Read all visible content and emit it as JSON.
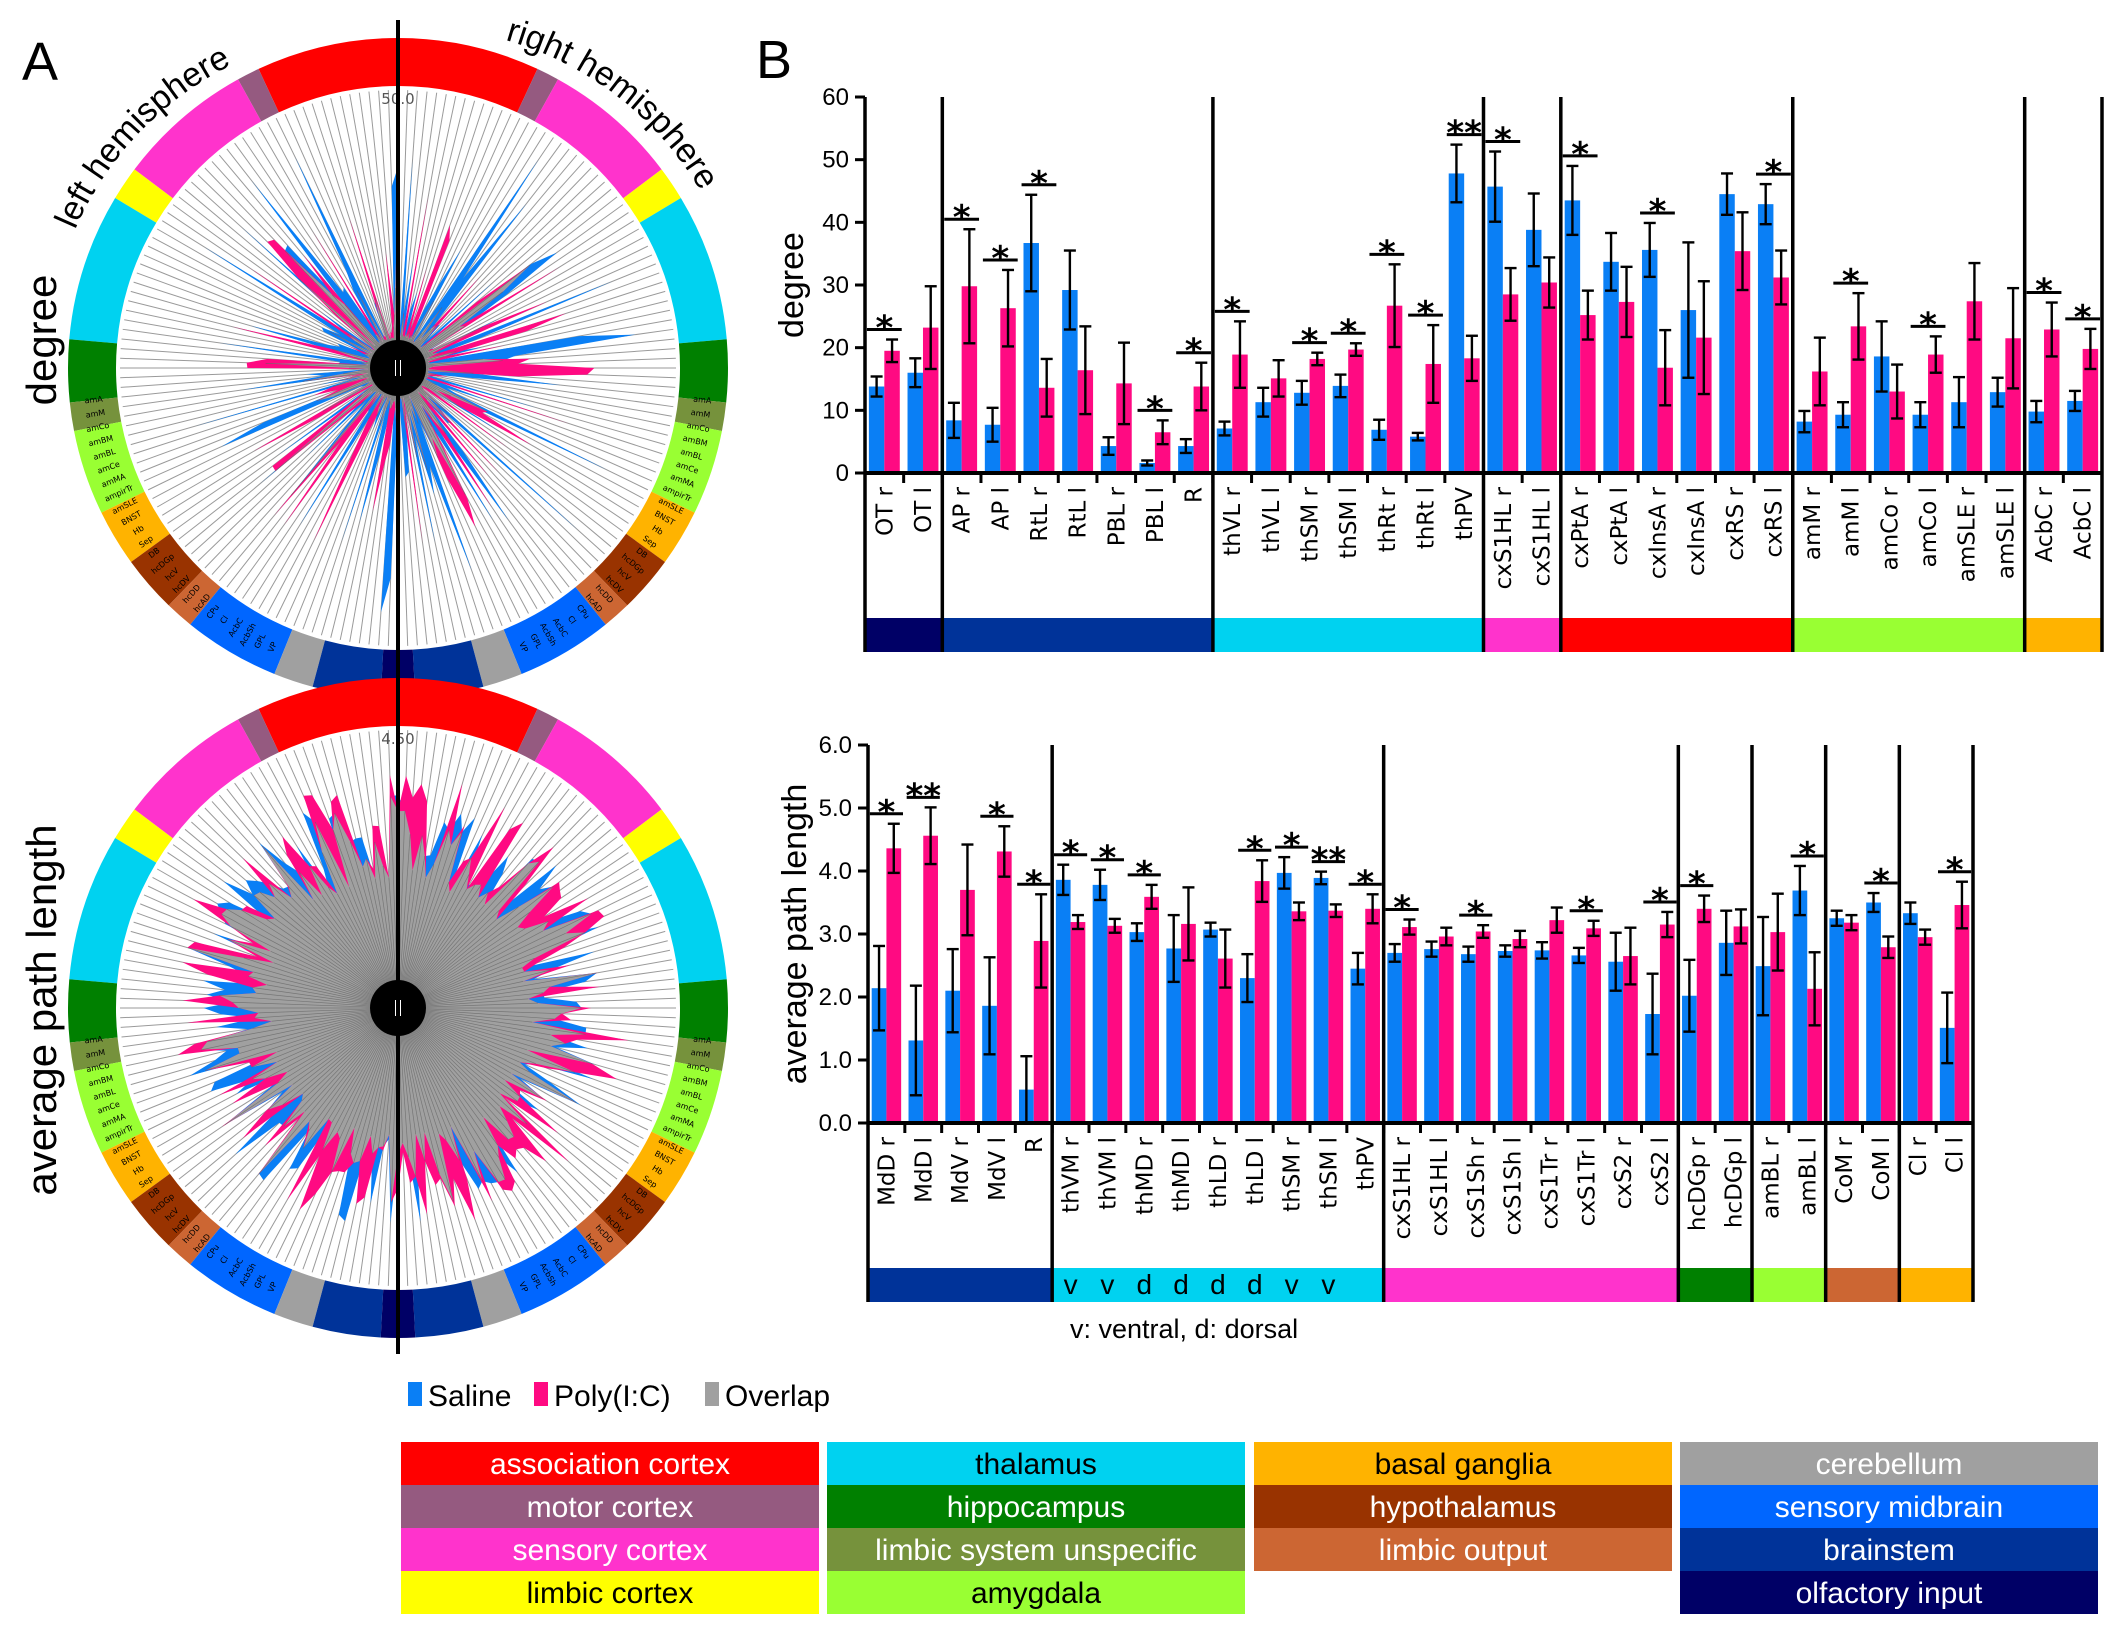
{
  "panel_a": {
    "letter": "A",
    "left_hemisphere_label": "left hemisphere",
    "right_hemisphere_label": "right hemisphere",
    "rows": [
      {
        "ylabel": "degree",
        "scale_label": "50.0"
      },
      {
        "ylabel": "average path length",
        "scale_label": "4.50"
      }
    ],
    "ring_labels_left": [
      "amA",
      "amM",
      "amCo",
      "amBM",
      "amBL",
      "amCe",
      "amMA",
      "ampirTr",
      "amSLE",
      "BNST",
      "Hb",
      "Sep",
      "DB",
      "hcDGp",
      "hcV",
      "hcDV",
      "hcDD",
      "hcAD",
      "CPu",
      "Cl",
      "AcbC",
      "AcbSh",
      "GPL",
      "VP"
    ]
  },
  "panel_b": {
    "letter": "B",
    "note": "v: ventral, d: dorsal"
  },
  "legend": {
    "series": [
      {
        "label": "Saline",
        "color": "#0a7ff5"
      },
      {
        "label": "Poly(I:C)",
        "color": "#ff0a82"
      },
      {
        "label": "Overlap",
        "color": "#a0a0a0"
      }
    ],
    "regions": [
      [
        {
          "label": "association cortex",
          "bg": "#ff0000",
          "fg": "#ffffff"
        },
        {
          "label": "motor cortex",
          "bg": "#955a80",
          "fg": "#ffffff"
        },
        {
          "label": "sensory cortex",
          "bg": "#ff33cc",
          "fg": "#ffffff"
        },
        {
          "label": "limbic cortex",
          "bg": "#ffff00",
          "fg": "#000000"
        }
      ],
      [
        {
          "label": "thalamus",
          "bg": "#00d2f0",
          "fg": "#000000"
        },
        {
          "label": "hippocampus",
          "bg": "#008000",
          "fg": "#ffffff"
        },
        {
          "label": "limbic system unspecific",
          "bg": "#76923c",
          "fg": "#ffffff"
        },
        {
          "label": "amygdala",
          "bg": "#99ff33",
          "fg": "#000000"
        }
      ],
      [
        {
          "label": "basal ganglia",
          "bg": "#ffb300",
          "fg": "#000000"
        },
        {
          "label": "hypothalamus",
          "bg": "#993300",
          "fg": "#ffffff"
        },
        {
          "label": "limbic output",
          "bg": "#cc6633",
          "fg": "#ffffff"
        }
      ],
      [
        {
          "label": "cerebellum",
          "bg": "#a0a0a0",
          "fg": "#ffffff"
        },
        {
          "label": "sensory midbrain",
          "bg": "#0066ff",
          "fg": "#ffffff"
        },
        {
          "label": "brainstem",
          "bg": "#003399",
          "fg": "#ffffff"
        },
        {
          "label": "olfactory input",
          "bg": "#000066",
          "fg": "#ffffff"
        }
      ]
    ]
  },
  "chart_data": [
    {
      "type": "bar",
      "title": "",
      "xlabel": "",
      "ylabel": "degree",
      "ylim": [
        0,
        60
      ],
      "yticks": [
        "0",
        "10",
        "20",
        "30",
        "40",
        "50",
        "60"
      ],
      "grid": false,
      "categories": [
        "OT r",
        "OT l",
        "AP r",
        "AP l",
        "RtL r",
        "RtL l",
        "PBL r",
        "PBL l",
        "R",
        "thVL r",
        "thVL l",
        "thSM r",
        "thSM l",
        "thRt r",
        "thRt l",
        "thPV",
        "cxS1HL r",
        "cxS1HL l",
        "cxPtA r",
        "cxPtA l",
        "cxInsA r",
        "cxInsA l",
        "cxRS r",
        "cxRS l",
        "amM r",
        "amM l",
        "amCo r",
        "amCo l",
        "amSLE r",
        "amSLE l",
        "AcbC r",
        "AcbC l"
      ],
      "series": [
        {
          "name": "Saline",
          "values": [
            13.8,
            16.0,
            8.4,
            7.7,
            36.7,
            29.2,
            4.3,
            1.6,
            4.3,
            7.1,
            11.3,
            12.8,
            13.9,
            6.9,
            5.8,
            47.8,
            45.7,
            38.8,
            43.5,
            33.7,
            35.6,
            26.0,
            44.5,
            42.9,
            8.2,
            9.3,
            18.6,
            9.3,
            11.3,
            12.9,
            9.8,
            11.5
          ],
          "errors": [
            1.6,
            2.3,
            2.8,
            2.7,
            7.7,
            6.3,
            1.4,
            0.4,
            1.1,
            1.1,
            2.3,
            1.9,
            1.8,
            1.6,
            0.6,
            4.6,
            5.6,
            5.8,
            5.5,
            4.6,
            4.3,
            10.8,
            3.3,
            3.2,
            1.7,
            2.0,
            5.6,
            2.0,
            4.0,
            2.3,
            1.7,
            1.6
          ]
        },
        {
          "name": "Poly(I:C)",
          "values": [
            19.5,
            23.2,
            29.8,
            26.3,
            13.6,
            16.4,
            14.3,
            6.5,
            13.8,
            18.9,
            15.1,
            18.2,
            19.7,
            26.7,
            17.4,
            18.3,
            28.5,
            30.4,
            25.2,
            27.3,
            16.8,
            21.6,
            35.4,
            31.2,
            16.2,
            23.4,
            13.0,
            18.9,
            27.4,
            21.5,
            22.9,
            19.8
          ],
          "errors": [
            1.8,
            6.6,
            9.1,
            6.1,
            4.6,
            7.0,
            6.5,
            1.9,
            3.8,
            5.3,
            2.9,
            1.0,
            1.0,
            6.6,
            6.2,
            3.6,
            4.2,
            4.0,
            3.9,
            5.6,
            6.0,
            9.0,
            6.2,
            4.3,
            5.4,
            5.3,
            4.3,
            2.9,
            6.1,
            8.0,
            4.3,
            3.2
          ]
        }
      ],
      "significance": [
        {
          "category_index": 0,
          "label": "*"
        },
        {
          "category_index": 2,
          "label": "*"
        },
        {
          "category_index": 3,
          "label": "*"
        },
        {
          "category_index": 4,
          "label": "*"
        },
        {
          "category_index": 7,
          "label": "*"
        },
        {
          "category_index": 8,
          "label": "*"
        },
        {
          "category_index": 9,
          "label": "*"
        },
        {
          "category_index": 11,
          "label": "*"
        },
        {
          "category_index": 12,
          "label": "*"
        },
        {
          "category_index": 13,
          "label": "*"
        },
        {
          "category_index": 14,
          "label": "*"
        },
        {
          "category_index": 15,
          "label": "**"
        },
        {
          "category_index": 16,
          "label": "*"
        },
        {
          "category_index": 18,
          "label": "*"
        },
        {
          "category_index": 20,
          "label": "*"
        },
        {
          "category_index": 23,
          "label": "*"
        },
        {
          "category_index": 25,
          "label": "*"
        },
        {
          "category_index": 27,
          "label": "*"
        },
        {
          "category_index": 30,
          "label": "*"
        },
        {
          "category_index": 31,
          "label": "*"
        }
      ],
      "groups": [
        {
          "start": 0,
          "end": 1,
          "region": "olfactory input",
          "color": "#000066",
          "sub_labels": []
        },
        {
          "start": 2,
          "end": 8,
          "region": "brainstem",
          "color": "#003399",
          "sub_labels": []
        },
        {
          "start": 9,
          "end": 15,
          "region": "thalamus",
          "color": "#00d2f0",
          "sub_labels": []
        },
        {
          "start": 16,
          "end": 17,
          "region": "sensory cortex",
          "color": "#ff33cc",
          "sub_labels": []
        },
        {
          "start": 18,
          "end": 23,
          "region": "association cortex",
          "color": "#ff0000",
          "sub_labels": []
        },
        {
          "start": 24,
          "end": 29,
          "region": "amygdala",
          "color": "#99ff33",
          "sub_labels": []
        },
        {
          "start": 30,
          "end": 31,
          "region": "basal ganglia",
          "color": "#ffb300",
          "sub_labels": []
        }
      ],
      "legend": "bottom"
    },
    {
      "type": "bar",
      "title": "",
      "xlabel": "",
      "ylabel": "average path length",
      "ylim": [
        0,
        6
      ],
      "yticks": [
        "0.0",
        "1.0",
        "2.0",
        "3.0",
        "4.0",
        "5.0",
        "6.0"
      ],
      "grid": false,
      "categories": [
        "MdD r",
        "MdD l",
        "MdV r",
        "MdV l",
        "R",
        "thVM r",
        "thVM l",
        "thMD r",
        "thMD l",
        "thLD r",
        "thLD l",
        "thSM r",
        "thSM l",
        "thPV",
        "cxS1HL r",
        "cxS1HL l",
        "cxS1Sh r",
        "cxS1Sh l",
        "cxS1Tr r",
        "cxS1Tr l",
        "cxS2 r",
        "cxS2 l",
        "hcDGp r",
        "hcDGp l",
        "amBL r",
        "amBL l",
        "CoM r",
        "CoM l",
        "Cl r",
        "Cl l"
      ],
      "series": [
        {
          "name": "Saline",
          "values": [
            2.14,
            1.31,
            2.1,
            1.86,
            0.53,
            3.86,
            3.78,
            3.03,
            2.77,
            3.07,
            2.3,
            3.97,
            3.89,
            2.45,
            2.7,
            2.76,
            2.68,
            2.73,
            2.74,
            2.66,
            2.56,
            1.73,
            2.02,
            2.86,
            2.49,
            3.69,
            3.25,
            3.5,
            3.33,
            1.51
          ],
          "errors": [
            0.67,
            0.87,
            0.66,
            0.77,
            0.53,
            0.24,
            0.24,
            0.14,
            0.53,
            0.11,
            0.38,
            0.25,
            0.1,
            0.25,
            0.14,
            0.12,
            0.12,
            0.09,
            0.13,
            0.12,
            0.46,
            0.64,
            0.57,
            0.51,
            0.78,
            0.39,
            0.12,
            0.15,
            0.17,
            0.56
          ],
          "note": ""
        },
        {
          "name": "Poly(I:C)",
          "values": [
            4.36,
            4.56,
            3.7,
            4.31,
            2.89,
            3.19,
            3.13,
            3.59,
            3.16,
            2.61,
            3.84,
            3.36,
            3.37,
            3.4,
            3.11,
            2.96,
            3.04,
            2.92,
            3.22,
            3.09,
            2.65,
            3.15,
            3.4,
            3.12,
            3.03,
            2.13,
            3.18,
            2.79,
            2.95,
            3.46
          ],
          "errors": [
            0.39,
            0.45,
            0.72,
            0.4,
            0.74,
            0.11,
            0.11,
            0.19,
            0.58,
            0.46,
            0.33,
            0.14,
            0.1,
            0.23,
            0.12,
            0.14,
            0.1,
            0.13,
            0.2,
            0.12,
            0.45,
            0.2,
            0.21,
            0.27,
            0.61,
            0.58,
            0.12,
            0.17,
            0.12,
            0.37
          ]
        }
      ],
      "significance": [
        {
          "category_index": 0,
          "label": "*"
        },
        {
          "category_index": 1,
          "label": "**"
        },
        {
          "category_index": 3,
          "label": "*"
        },
        {
          "category_index": 4,
          "label": "*"
        },
        {
          "category_index": 5,
          "label": "*"
        },
        {
          "category_index": 6,
          "label": "*"
        },
        {
          "category_index": 7,
          "label": "*"
        },
        {
          "category_index": 10,
          "label": "*"
        },
        {
          "category_index": 11,
          "label": "*"
        },
        {
          "category_index": 12,
          "label": "**"
        },
        {
          "category_index": 13,
          "label": "*"
        },
        {
          "category_index": 14,
          "label": "*"
        },
        {
          "category_index": 16,
          "label": "*"
        },
        {
          "category_index": 19,
          "label": "*"
        },
        {
          "category_index": 21,
          "label": "*"
        },
        {
          "category_index": 22,
          "label": "*"
        },
        {
          "category_index": 25,
          "label": "*"
        },
        {
          "category_index": 27,
          "label": "*"
        },
        {
          "category_index": 29,
          "label": "*"
        }
      ],
      "groups": [
        {
          "start": 0,
          "end": 4,
          "region": "brainstem",
          "color": "#003399",
          "sub_labels": []
        },
        {
          "start": 5,
          "end": 13,
          "region": "thalamus",
          "color": "#00d2f0",
          "sub_labels": [
            "v",
            "v",
            "d",
            "d",
            "d",
            "d",
            "v",
            "v"
          ]
        },
        {
          "start": 14,
          "end": 21,
          "region": "sensory cortex",
          "color": "#ff33cc",
          "sub_labels": []
        },
        {
          "start": 22,
          "end": 23,
          "region": "hippocampus",
          "color": "#008000",
          "sub_labels": []
        },
        {
          "start": 24,
          "end": 25,
          "region": "amygdala",
          "color": "#99ff33",
          "sub_labels": []
        },
        {
          "start": 26,
          "end": 27,
          "region": "limbic output",
          "color": "#cc6633",
          "sub_labels": []
        },
        {
          "start": 28,
          "end": 29,
          "region": "basal ganglia",
          "color": "#ffb300",
          "sub_labels": []
        }
      ],
      "legend": "bottom"
    }
  ]
}
